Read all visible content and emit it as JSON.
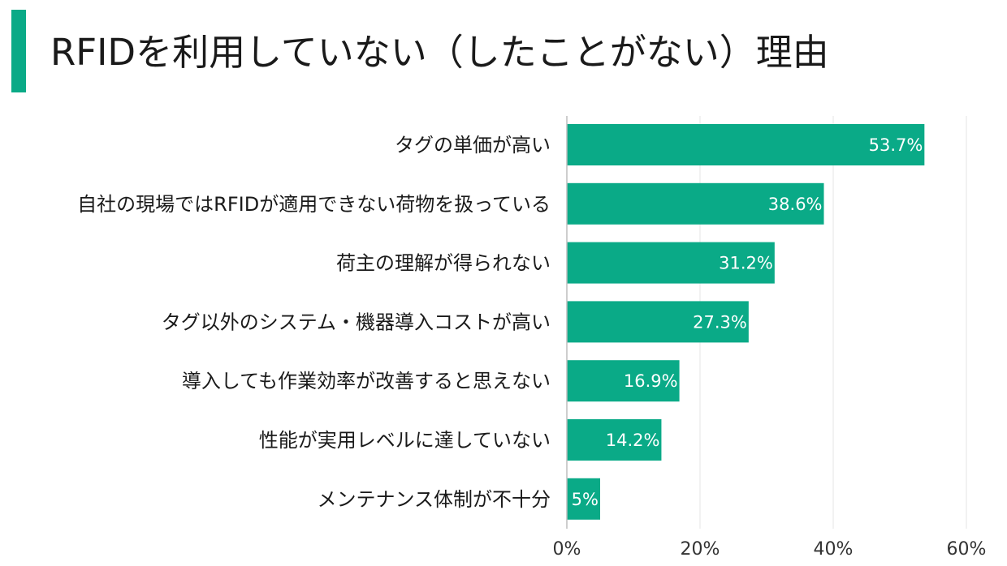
{
  "title": "RFIDを利用していない（したことがない）理由",
  "colors": {
    "accent": "#0aaa87",
    "bar": "#0aaa87",
    "grid": "#e6e6e6",
    "axis": "#bdbdbd"
  },
  "chart_data": {
    "type": "bar",
    "orientation": "horizontal",
    "title": "",
    "xlabel": "",
    "ylabel": "",
    "xlim": [
      0,
      60
    ],
    "categories": [
      "タグの単価が高い",
      "自社の現場ではRFIDが適用できない荷物を扱っている",
      "荷主の理解が得られない",
      "タグ以外のシステム・機器導入コストが高い",
      "導入しても作業効率が改善すると思えない",
      "性能が実用レベルに達していない",
      "メンテナンス体制が不十分"
    ],
    "values": [
      53.7,
      38.6,
      31.2,
      27.3,
      16.9,
      14.2,
      5
    ],
    "value_labels": [
      "53.7%",
      "38.6%",
      "31.2%",
      "27.3%",
      "16.9%",
      "14.2%",
      "5%"
    ],
    "ticks": [
      0,
      20,
      40,
      60
    ],
    "tick_labels": [
      "0%",
      "20%",
      "40%",
      "60%"
    ],
    "grid": true,
    "legend": "none"
  }
}
